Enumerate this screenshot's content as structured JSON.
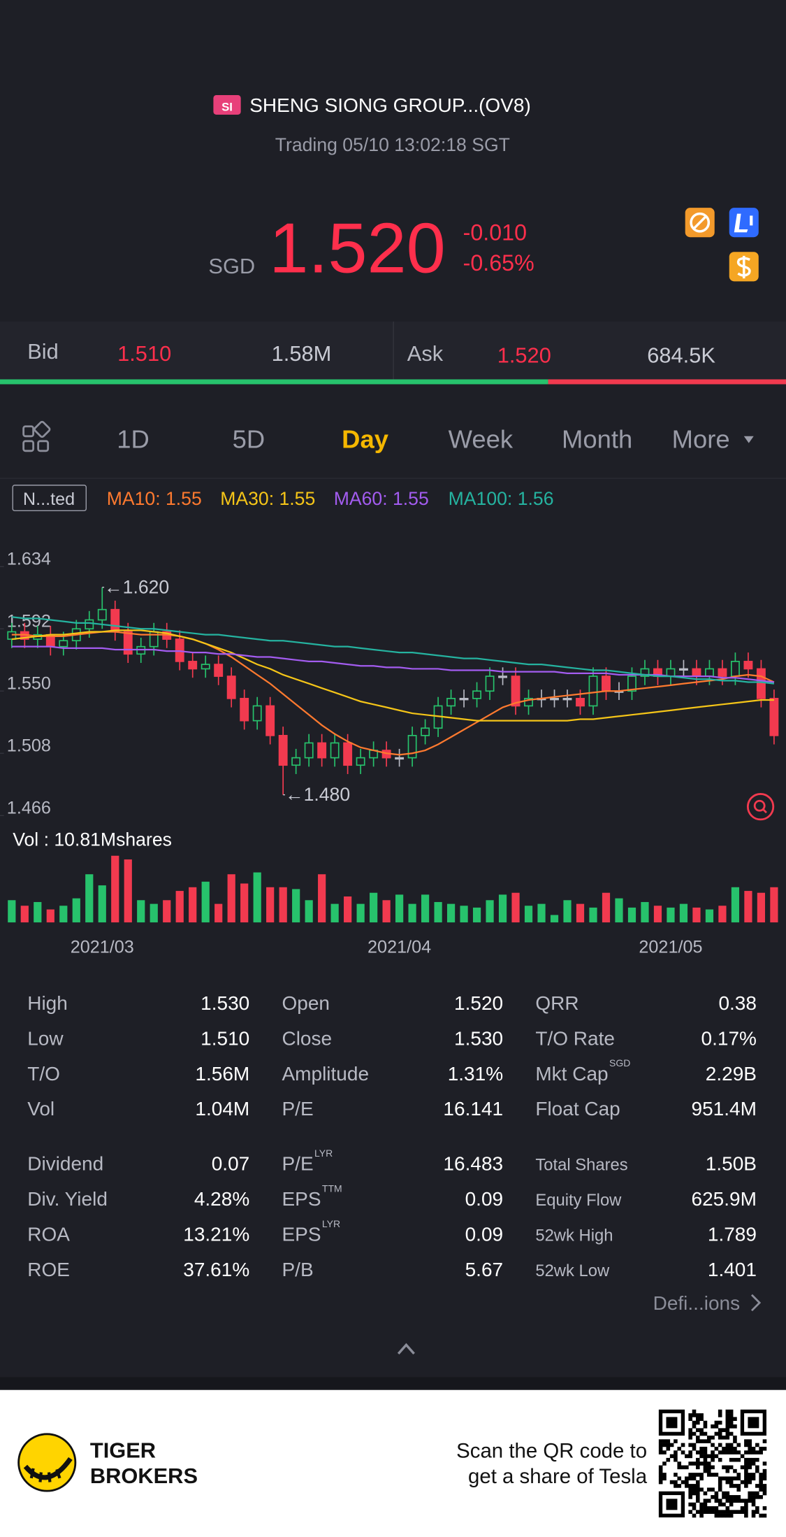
{
  "header": {
    "badge": "SI",
    "title": "SHENG SIONG GROUP...(OV8)",
    "status": "Trading 05/10 13:02:18 SGT",
    "currency": "SGD",
    "price": "1.520",
    "change": "-0.010",
    "change_pct": "-0.65%"
  },
  "quote": {
    "bid_label": "Bid",
    "bid": "1.510",
    "bid_size": "1.58M",
    "ask_label": "Ask",
    "ask": "1.520",
    "ask_size": "684.5K"
  },
  "tabs": [
    "1D",
    "5D",
    "Day",
    "Week",
    "Month",
    "More"
  ],
  "indicator_button": "N...ted",
  "chart_data": {
    "type": "candlestick",
    "categories": [
      null,
      null,
      null,
      null,
      null,
      null,
      null,
      "2021/03",
      null,
      null,
      null,
      null,
      null,
      null,
      null,
      null,
      null,
      null,
      null,
      null,
      null,
      null,
      null,
      null,
      null,
      null,
      null,
      null,
      null,
      null,
      "2021/04",
      null,
      null,
      null,
      null,
      null,
      null,
      null,
      null,
      null,
      null,
      null,
      null,
      null,
      null,
      null,
      null,
      null,
      null,
      null,
      null,
      "2021/05",
      null,
      null,
      null,
      null,
      null,
      null,
      null,
      null
    ],
    "open": [
      1.585,
      1.59,
      1.585,
      1.588,
      1.58,
      1.584,
      1.592,
      1.598,
      1.605,
      1.59,
      1.575,
      1.58,
      1.59,
      1.585,
      1.57,
      1.565,
      1.568,
      1.56,
      1.545,
      1.53,
      1.54,
      1.52,
      1.5,
      1.505,
      1.515,
      1.505,
      1.515,
      1.5,
      1.505,
      1.51,
      1.505,
      1.505,
      1.52,
      1.525,
      1.54,
      1.545,
      1.545,
      1.55,
      1.56,
      1.56,
      1.54,
      1.545,
      1.545,
      1.545,
      1.545,
      1.54,
      1.56,
      1.55,
      1.55,
      1.56,
      1.565,
      1.56,
      1.565,
      1.565,
      1.56,
      1.565,
      1.56,
      1.57,
      1.565,
      1.545
    ],
    "high": [
      1.596,
      1.596,
      1.594,
      1.594,
      1.59,
      1.598,
      1.604,
      1.62,
      1.611,
      1.596,
      1.586,
      1.596,
      1.596,
      1.591,
      1.576,
      1.574,
      1.574,
      1.566,
      1.551,
      1.546,
      1.546,
      1.526,
      1.511,
      1.521,
      1.521,
      1.521,
      1.521,
      1.511,
      1.516,
      1.516,
      1.511,
      1.526,
      1.531,
      1.546,
      1.551,
      1.551,
      1.556,
      1.566,
      1.566,
      1.566,
      1.551,
      1.551,
      1.551,
      1.551,
      1.551,
      1.566,
      1.566,
      1.556,
      1.566,
      1.571,
      1.571,
      1.571,
      1.571,
      1.571,
      1.571,
      1.571,
      1.576,
      1.576,
      1.571,
      1.551
    ],
    "low": [
      1.579,
      1.579,
      1.579,
      1.574,
      1.574,
      1.578,
      1.586,
      1.592,
      1.584,
      1.569,
      1.569,
      1.574,
      1.579,
      1.564,
      1.559,
      1.559,
      1.554,
      1.539,
      1.524,
      1.524,
      1.514,
      1.48,
      1.494,
      1.499,
      1.499,
      1.499,
      1.494,
      1.494,
      1.499,
      1.499,
      1.499,
      1.499,
      1.514,
      1.519,
      1.534,
      1.539,
      1.539,
      1.544,
      1.554,
      1.534,
      1.534,
      1.539,
      1.539,
      1.539,
      1.534,
      1.534,
      1.544,
      1.544,
      1.544,
      1.554,
      1.554,
      1.554,
      1.559,
      1.554,
      1.554,
      1.554,
      1.554,
      1.559,
      1.539,
      1.514
    ],
    "close": [
      1.59,
      1.585,
      1.588,
      1.58,
      1.584,
      1.592,
      1.598,
      1.605,
      1.59,
      1.575,
      1.58,
      1.59,
      1.585,
      1.57,
      1.565,
      1.568,
      1.56,
      1.545,
      1.53,
      1.54,
      1.52,
      1.5,
      1.505,
      1.515,
      1.505,
      1.515,
      1.5,
      1.505,
      1.51,
      1.505,
      1.505,
      1.52,
      1.525,
      1.54,
      1.545,
      1.545,
      1.55,
      1.56,
      1.56,
      1.54,
      1.545,
      1.545,
      1.545,
      1.545,
      1.54,
      1.56,
      1.55,
      1.55,
      1.56,
      1.565,
      1.56,
      1.565,
      1.565,
      1.56,
      1.565,
      1.56,
      1.57,
      1.565,
      1.545,
      1.52
    ],
    "up_color": "#27c26c",
    "down_color": "#f23a4f",
    "ylim": [
      1.466,
      1.634
    ],
    "yticks": [
      1.466,
      1.508,
      {
        "value": 1.55,
        "label": "1.550"
      },
      1.592,
      1.634
    ],
    "annotations": [
      {
        "text": "←1.620",
        "value": 1.62,
        "index": 7
      },
      {
        "text": "←1.480",
        "value": 1.48,
        "index": 21
      }
    ],
    "series": [
      {
        "label": "MA10: 1.55",
        "color": "#ff7a2f",
        "values": [
          1.588,
          1.588,
          1.587,
          1.587,
          1.587,
          1.588,
          1.589,
          1.59,
          1.59,
          1.589,
          1.588,
          1.588,
          1.588,
          1.587,
          1.585,
          1.582,
          1.578,
          1.573,
          1.567,
          1.561,
          1.555,
          1.548,
          1.541,
          1.534,
          1.527,
          1.521,
          1.516,
          1.512,
          1.51,
          1.508,
          1.507,
          1.508,
          1.51,
          1.514,
          1.519,
          1.524,
          1.529,
          1.534,
          1.539,
          1.542,
          1.544,
          1.545,
          1.546,
          1.547,
          1.548,
          1.549,
          1.55,
          1.55,
          1.551,
          1.552,
          1.553,
          1.554,
          1.555,
          1.556,
          1.557,
          1.558,
          1.56,
          1.561,
          1.56,
          1.556
        ]
      },
      {
        "label": "MA30: 1.55",
        "color": "#f5c518",
        "values": [
          1.585,
          1.586,
          1.587,
          1.588,
          1.588,
          1.589,
          1.59,
          1.59,
          1.591,
          1.591,
          1.591,
          1.59,
          1.589,
          1.587,
          1.585,
          1.582,
          1.579,
          1.576,
          1.572,
          1.568,
          1.565,
          1.561,
          1.558,
          1.555,
          1.552,
          1.549,
          1.546,
          1.543,
          1.541,
          1.539,
          1.537,
          1.535,
          1.534,
          1.533,
          1.532,
          1.531,
          1.53,
          1.53,
          1.53,
          1.53,
          1.53,
          1.53,
          1.53,
          1.53,
          1.531,
          1.531,
          1.532,
          1.533,
          1.534,
          1.535,
          1.536,
          1.537,
          1.538,
          1.539,
          1.54,
          1.541,
          1.542,
          1.543,
          1.544,
          1.544
        ]
      },
      {
        "label": "MA60: 1.55",
        "color": "#a35cf0",
        "values": [
          1.58,
          1.58,
          1.58,
          1.58,
          1.579,
          1.579,
          1.579,
          1.579,
          1.578,
          1.578,
          1.578,
          1.578,
          1.577,
          1.577,
          1.576,
          1.576,
          1.575,
          1.575,
          1.574,
          1.573,
          1.573,
          1.572,
          1.571,
          1.57,
          1.57,
          1.569,
          1.568,
          1.567,
          1.567,
          1.566,
          1.566,
          1.565,
          1.565,
          1.565,
          1.564,
          1.564,
          1.564,
          1.564,
          1.563,
          1.563,
          1.563,
          1.563,
          1.563,
          1.562,
          1.562,
          1.562,
          1.562,
          1.561,
          1.561,
          1.561,
          1.561,
          1.56,
          1.56,
          1.56,
          1.56,
          1.559,
          1.559,
          1.558,
          1.557,
          1.556
        ]
      },
      {
        "label": "MA100: 1.56",
        "color": "#25b3a0",
        "values": [
          1.6,
          1.599,
          1.599,
          1.598,
          1.597,
          1.596,
          1.596,
          1.595,
          1.594,
          1.593,
          1.592,
          1.592,
          1.591,
          1.59,
          1.589,
          1.588,
          1.588,
          1.587,
          1.586,
          1.585,
          1.584,
          1.584,
          1.583,
          1.582,
          1.581,
          1.58,
          1.58,
          1.579,
          1.578,
          1.577,
          1.576,
          1.576,
          1.575,
          1.574,
          1.573,
          1.572,
          1.572,
          1.571,
          1.57,
          1.569,
          1.568,
          1.568,
          1.567,
          1.566,
          1.565,
          1.564,
          1.564,
          1.563,
          1.562,
          1.561,
          1.56,
          1.56,
          1.559,
          1.558,
          1.558,
          1.557,
          1.557,
          1.556,
          1.556,
          1.555
        ]
      }
    ],
    "volume": {
      "label": "Vol  : 10.81Mshares",
      "values": [
        1.2,
        0.9,
        1.1,
        0.7,
        0.9,
        1.3,
        2.6,
        2.0,
        3.6,
        3.4,
        1.2,
        1.0,
        1.2,
        1.7,
        1.9,
        2.2,
        1.0,
        2.6,
        2.1,
        2.7,
        1.9,
        1.9,
        1.8,
        1.2,
        2.6,
        1.0,
        1.4,
        1.0,
        1.6,
        1.2,
        1.5,
        1.0,
        1.5,
        1.1,
        1.0,
        0.9,
        0.8,
        1.2,
        1.5,
        1.6,
        0.9,
        1.0,
        0.4,
        1.2,
        1.0,
        0.8,
        1.6,
        1.3,
        0.8,
        1.1,
        0.9,
        0.8,
        1.0,
        0.8,
        0.7,
        0.9,
        1.9,
        1.7,
        1.6,
        1.9
      ]
    }
  },
  "stats": [
    {
      "label": "High",
      "value": "1.530"
    },
    {
      "label": "Open",
      "value": "1.520"
    },
    {
      "label": "QRR",
      "value": "0.38"
    },
    {
      "label": "Low",
      "value": "1.510"
    },
    {
      "label": "Close",
      "value": "1.530"
    },
    {
      "label": "T/O Rate",
      "value": "0.17%"
    },
    {
      "label": "T/O",
      "value": "1.56M"
    },
    {
      "label": "Amplitude",
      "value": "1.31%"
    },
    {
      "label": "Mkt Cap",
      "sup": "SGD",
      "value": "2.29B"
    },
    {
      "label": "Vol",
      "value": "1.04M"
    },
    {
      "label": "P/E",
      "value": "16.141"
    },
    {
      "label": "Float Cap",
      "value": "951.4M"
    },
    {
      "label": "Dividend",
      "value": "0.07"
    },
    {
      "label": "P/E",
      "sup": "LYR",
      "value": "16.483"
    },
    {
      "label": "Total Shares",
      "value": "1.50B"
    },
    {
      "label": "Div. Yield",
      "value": "4.28%"
    },
    {
      "label": "EPS",
      "sup": "TTM",
      "value": "0.09"
    },
    {
      "label": "Equity Flow",
      "value": "625.9M"
    },
    {
      "label": "ROA",
      "value": "13.21%"
    },
    {
      "label": "EPS",
      "sup": "LYR",
      "value": "0.09"
    },
    {
      "label": "52wk High",
      "value": "1.789"
    },
    {
      "label": "ROE",
      "value": "37.61%"
    },
    {
      "label": "P/B",
      "value": "5.67"
    },
    {
      "label": "52wk Low",
      "value": "1.401"
    }
  ],
  "definitions": "Defi...ions",
  "footer": {
    "brand": [
      "TIGER",
      "BROKERS"
    ],
    "promo": [
      "Scan the QR code to",
      "get a share of Tesla"
    ]
  }
}
